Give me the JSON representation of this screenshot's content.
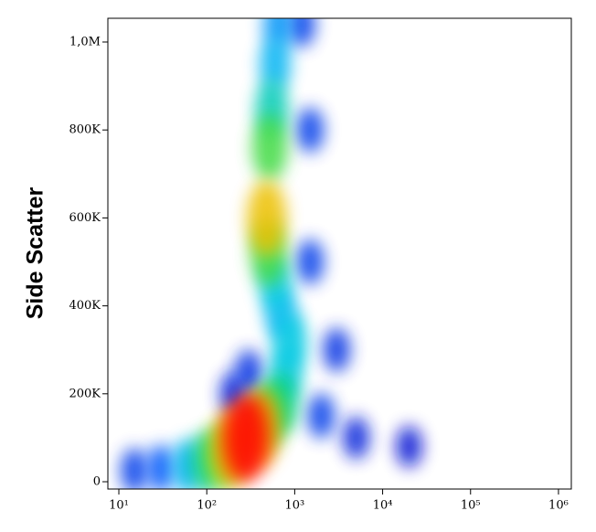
{
  "chart_data": {
    "type": "density",
    "y_label": "Side Scatter",
    "x_scale": "log",
    "xlim": [
      7.5,
      1400000
    ],
    "ylim": [
      -16600,
      1054000
    ],
    "xticks": [
      {
        "value": 10,
        "label": "10¹"
      },
      {
        "value": 100,
        "label": "10²"
      },
      {
        "value": 1000,
        "label": "10³"
      },
      {
        "value": 10000,
        "label": "10⁴"
      },
      {
        "value": 100000,
        "label": "10⁵"
      },
      {
        "value": 1000000,
        "label": "10⁶"
      }
    ],
    "yticks": [
      0,
      {
        "value": 200000,
        "label": "200K"
      },
      {
        "value": 400000,
        "label": "400K"
      },
      {
        "value": 600000,
        "label": "600K"
      },
      {
        "value": 800000,
        "label": "800K"
      },
      {
        "value": 1000000,
        "label": "1,0M"
      }
    ],
    "colormap": [
      "#0000c8",
      "#0060ff",
      "#00c8f0",
      "#00d060",
      "#d8f000",
      "#ff9000",
      "#ff0000"
    ],
    "x": [
      20000,
      5000,
      15,
      200,
      3000,
      300,
      1500,
      1500,
      2000,
      1200,
      30,
      650,
      700,
      600,
      900,
      800,
      60,
      550,
      600,
      700,
      100,
      500,
      520,
      150,
      500,
      480,
      400,
      200,
      280
    ],
    "y": [
      80000,
      100000,
      25000,
      200000,
      300000,
      250000,
      500000,
      800000,
      150000,
      1040000,
      30000,
      1040000,
      380000,
      950000,
      320000,
      250000,
      35000,
      850000,
      450000,
      180000,
      45000,
      520000,
      760000,
      60000,
      150000,
      600000,
      120000,
      80000,
      100000
    ],
    "density": [
      0.03,
      0.05,
      0.1,
      0.06,
      0.08,
      0.08,
      0.1,
      0.1,
      0.1,
      0.1,
      0.15,
      0.25,
      0.3,
      0.3,
      0.35,
      0.35,
      0.3,
      0.4,
      0.35,
      0.45,
      0.45,
      0.55,
      0.55,
      0.6,
      0.55,
      0.75,
      0.8,
      0.8,
      1.0
    ]
  }
}
